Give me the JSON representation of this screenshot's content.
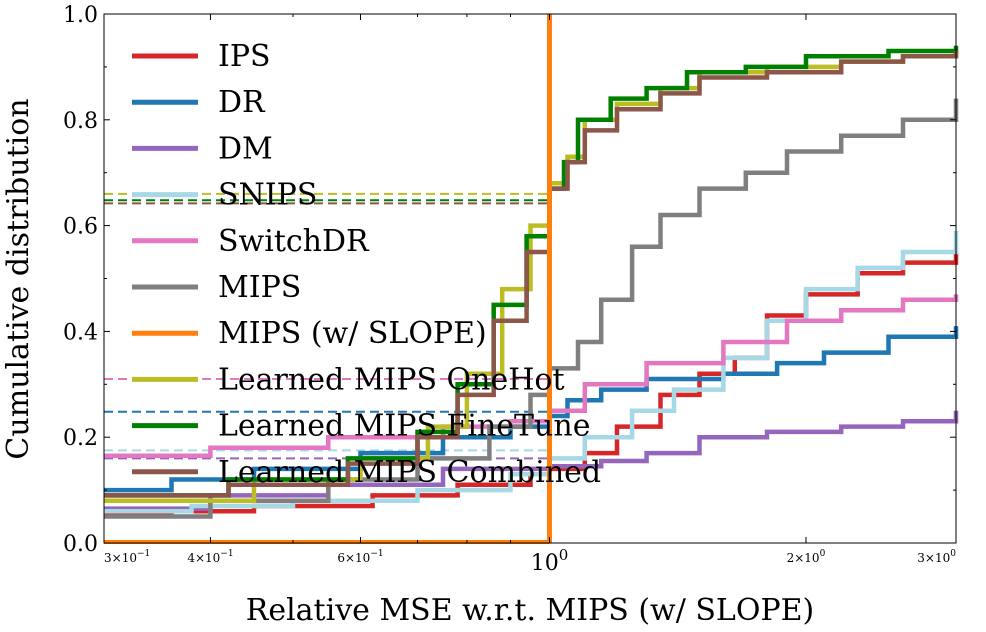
{
  "chart_data": {
    "type": "line",
    "xlabel": "Relative MSE w.r.t. MIPS (w/ SLOPE)",
    "ylabel": "Cumulative distribution",
    "xscale": "log",
    "xlim": [
      0.3,
      3.0
    ],
    "ylim": [
      0.0,
      1.0
    ],
    "grid": false,
    "legend_position": "top-left",
    "x_ticks": [
      {
        "value": 0.3,
        "base": "3×10",
        "exp": "−1"
      },
      {
        "value": 0.4,
        "base": "4×10",
        "exp": "−1"
      },
      {
        "value": 0.6,
        "base": "6×10",
        "exp": "−1"
      },
      {
        "value": 1.0,
        "base": "10",
        "exp": "0"
      },
      {
        "value": 2.0,
        "base": "2×10",
        "exp": "0"
      },
      {
        "value": 3.0,
        "base": "3×10",
        "exp": "0"
      }
    ],
    "y_ticks": [
      {
        "value": 0.0,
        "label": "0.0"
      },
      {
        "value": 0.2,
        "label": "0.2"
      },
      {
        "value": 0.4,
        "label": "0.4"
      },
      {
        "value": 0.6,
        "label": "0.6"
      },
      {
        "value": 0.8,
        "label": "0.8"
      },
      {
        "value": 1.0,
        "label": "1.0"
      }
    ],
    "vline": {
      "x": 1.0,
      "color": "#ff7f0e"
    },
    "series": [
      {
        "name": "IPS",
        "color": "#d62728",
        "hline": null,
        "points": [
          [
            0.3,
            0.055
          ],
          [
            0.36,
            0.06
          ],
          [
            0.45,
            0.07
          ],
          [
            0.62,
            0.09
          ],
          [
            0.78,
            0.11
          ],
          [
            0.95,
            0.13
          ],
          [
            1.0,
            0.14
          ],
          [
            1.1,
            0.17
          ],
          [
            1.2,
            0.22
          ],
          [
            1.35,
            0.28
          ],
          [
            1.5,
            0.32
          ],
          [
            1.65,
            0.35
          ],
          [
            1.8,
            0.43
          ],
          [
            2.0,
            0.47
          ],
          [
            2.3,
            0.51
          ],
          [
            2.6,
            0.53
          ],
          [
            3.0,
            0.55
          ]
        ]
      },
      {
        "name": "DR",
        "color": "#1f77b4",
        "hline": 0.248,
        "points": [
          [
            0.3,
            0.1
          ],
          [
            0.36,
            0.12
          ],
          [
            0.45,
            0.14
          ],
          [
            0.6,
            0.17
          ],
          [
            0.75,
            0.2
          ],
          [
            0.9,
            0.22
          ],
          [
            1.0,
            0.24
          ],
          [
            1.05,
            0.27
          ],
          [
            1.15,
            0.29
          ],
          [
            1.3,
            0.31
          ],
          [
            1.6,
            0.32
          ],
          [
            1.85,
            0.34
          ],
          [
            2.1,
            0.36
          ],
          [
            2.5,
            0.39
          ],
          [
            3.0,
            0.41
          ]
        ]
      },
      {
        "name": "DM",
        "color": "#9467bd",
        "hline": 0.16,
        "points": [
          [
            0.3,
            0.065
          ],
          [
            0.4,
            0.09
          ],
          [
            0.55,
            0.11
          ],
          [
            0.75,
            0.14
          ],
          [
            1.0,
            0.145
          ],
          [
            1.15,
            0.155
          ],
          [
            1.3,
            0.17
          ],
          [
            1.5,
            0.2
          ],
          [
            1.8,
            0.21
          ],
          [
            2.2,
            0.22
          ],
          [
            2.6,
            0.23
          ],
          [
            3.0,
            0.25
          ]
        ]
      },
      {
        "name": "SNIPS",
        "color": "#a6d8e6",
        "hline": 0.175,
        "points": [
          [
            0.3,
            0.06
          ],
          [
            0.38,
            0.07
          ],
          [
            0.5,
            0.08
          ],
          [
            0.7,
            0.1
          ],
          [
            0.9,
            0.13
          ],
          [
            1.0,
            0.16
          ],
          [
            1.1,
            0.2
          ],
          [
            1.25,
            0.25
          ],
          [
            1.4,
            0.29
          ],
          [
            1.6,
            0.35
          ],
          [
            1.8,
            0.42
          ],
          [
            2.0,
            0.48
          ],
          [
            2.3,
            0.52
          ],
          [
            2.6,
            0.55
          ],
          [
            3.0,
            0.59
          ]
        ]
      },
      {
        "name": "SwitchDR",
        "color": "#e377c2",
        "hline": 0.31,
        "points": [
          [
            0.3,
            0.165
          ],
          [
            0.4,
            0.18
          ],
          [
            0.55,
            0.2
          ],
          [
            0.75,
            0.22
          ],
          [
            0.9,
            0.23
          ],
          [
            1.0,
            0.25
          ],
          [
            1.1,
            0.3
          ],
          [
            1.3,
            0.34
          ],
          [
            1.6,
            0.38
          ],
          [
            1.9,
            0.42
          ],
          [
            2.2,
            0.44
          ],
          [
            2.6,
            0.46
          ],
          [
            3.0,
            0.47
          ]
        ]
      },
      {
        "name": "MIPS",
        "color": "#7f7f7f",
        "hline": null,
        "points": [
          [
            0.3,
            0.05
          ],
          [
            0.4,
            0.08
          ],
          [
            0.55,
            0.12
          ],
          [
            0.7,
            0.16
          ],
          [
            0.85,
            0.22
          ],
          [
            0.95,
            0.28
          ],
          [
            1.0,
            0.33
          ],
          [
            1.08,
            0.38
          ],
          [
            1.15,
            0.46
          ],
          [
            1.25,
            0.56
          ],
          [
            1.35,
            0.62
          ],
          [
            1.5,
            0.67
          ],
          [
            1.7,
            0.7
          ],
          [
            1.9,
            0.74
          ],
          [
            2.2,
            0.77
          ],
          [
            2.6,
            0.8
          ],
          [
            3.0,
            0.84
          ]
        ]
      },
      {
        "name": "MIPS (w/ SLOPE)",
        "color": "#ff7f0e",
        "hline": null,
        "points": []
      },
      {
        "name": "Learned MIPS OneHot",
        "color": "#bcbd22",
        "hline": 0.66,
        "points": [
          [
            0.3,
            0.08
          ],
          [
            0.45,
            0.12
          ],
          [
            0.6,
            0.16
          ],
          [
            0.72,
            0.22
          ],
          [
            0.8,
            0.32
          ],
          [
            0.88,
            0.48
          ],
          [
            0.95,
            0.6
          ],
          [
            1.0,
            0.68
          ],
          [
            1.05,
            0.73
          ],
          [
            1.1,
            0.8
          ],
          [
            1.2,
            0.83
          ],
          [
            1.35,
            0.86
          ],
          [
            1.5,
            0.89
          ],
          [
            1.8,
            0.9
          ],
          [
            2.2,
            0.91
          ],
          [
            2.6,
            0.92
          ],
          [
            3.0,
            0.93
          ]
        ]
      },
      {
        "name": "Learned MIPS FineTune",
        "color": "#008000",
        "hline": 0.648,
        "points": [
          [
            0.3,
            0.09
          ],
          [
            0.42,
            0.12
          ],
          [
            0.58,
            0.16
          ],
          [
            0.7,
            0.21
          ],
          [
            0.78,
            0.3
          ],
          [
            0.86,
            0.45
          ],
          [
            0.94,
            0.58
          ],
          [
            1.0,
            0.67
          ],
          [
            1.04,
            0.72
          ],
          [
            1.08,
            0.8
          ],
          [
            1.18,
            0.84
          ],
          [
            1.3,
            0.86
          ],
          [
            1.45,
            0.89
          ],
          [
            1.7,
            0.9
          ],
          [
            2.0,
            0.92
          ],
          [
            2.5,
            0.93
          ],
          [
            3.0,
            0.94
          ]
        ]
      },
      {
        "name": "Learned MIPS Combined",
        "color": "#8c564b",
        "hline": 0.642,
        "points": [
          [
            0.3,
            0.09
          ],
          [
            0.42,
            0.11
          ],
          [
            0.58,
            0.15
          ],
          [
            0.7,
            0.2
          ],
          [
            0.78,
            0.28
          ],
          [
            0.86,
            0.42
          ],
          [
            0.94,
            0.55
          ],
          [
            1.0,
            0.67
          ],
          [
            1.05,
            0.72
          ],
          [
            1.1,
            0.78
          ],
          [
            1.2,
            0.82
          ],
          [
            1.35,
            0.85
          ],
          [
            1.5,
            0.88
          ],
          [
            1.8,
            0.89
          ],
          [
            2.2,
            0.91
          ],
          [
            2.6,
            0.92
          ],
          [
            3.0,
            0.93
          ]
        ]
      }
    ]
  }
}
